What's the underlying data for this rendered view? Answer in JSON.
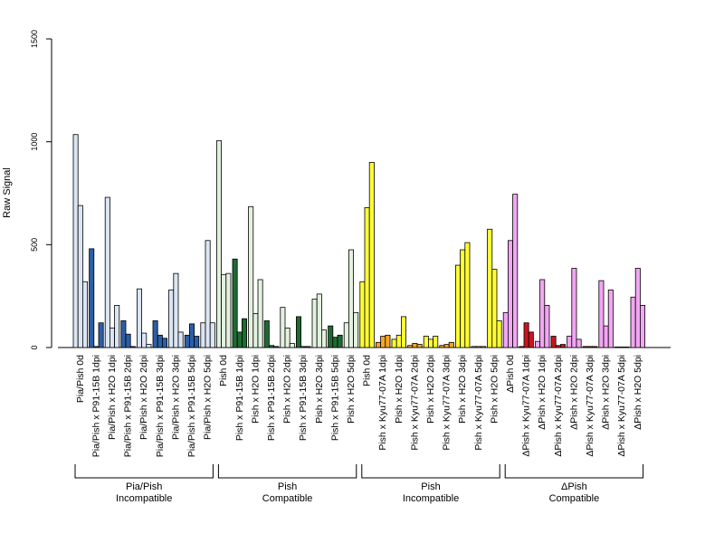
{
  "chart_data": {
    "type": "bar",
    "ylabel": "Raw Signal",
    "ylim": [
      0,
      1500
    ],
    "yticks": [
      0,
      500,
      1000,
      1500
    ],
    "grid": false,
    "legend": "none",
    "categories": [
      "Pia/Pish 0d",
      "Pia/Pish x P91-15B 1dpi",
      "Pia/Pish x H2O 1dpi",
      "Pia/Pish x P91-15B 2dpi",
      "Pia/Pish x H2O 2dpi",
      "Pia/Pish x P91-15B 3dpi",
      "Pia/Pish x H2O 3dpi",
      "Pia/Pish x P91-15B 5dpi",
      "Pia/Pish x H2O 5dpi",
      "Pish 0d",
      "Pish x P91-15B 1dpi",
      "Pish x H2O 1dpi",
      "Pish x P91-15B 2dpi",
      "Pish x H2O 2dpi",
      "Pish x P91-15B 3dpi",
      "Pish x H2O 3dpi",
      "Pish x P91-15B 5dpi",
      "Pish x H2O 5dpi",
      "Pish 0d",
      "Pish x Kyu77-07A 1dpi",
      "Pish x H2O 1dpi",
      "Pish x Kyu77-07A 2dpi",
      "Pish x H2O 2dpi",
      "Pish x Kyu77-07A 3dpi",
      "Pish x H2O 3dpi",
      "Pish x Kyu77-07A 5dpi",
      "Pish x H2O 5dpi",
      "ΔPish 0d",
      "ΔPish x Kyu77-07A 1dpi",
      "ΔPish x H2O 1dpi",
      "ΔPish x Kyu77-07A 2dpi",
      "ΔPish x H2O 2dpi",
      "ΔPish x Kyu77-07A 3dpi",
      "ΔPish x H2O 3dpi",
      "ΔPish x Kyu77-07A 5dpi",
      "ΔPish x H2O 5dpi"
    ],
    "values": [
      [
        1035,
        690,
        320
      ],
      [
        480,
        5,
        120
      ],
      [
        730,
        95,
        205
      ],
      [
        130,
        65,
        5
      ],
      [
        285,
        70,
        15
      ],
      [
        130,
        60,
        45
      ],
      [
        280,
        360,
        75
      ],
      [
        60,
        115,
        55
      ],
      [
        120,
        520,
        120
      ],
      [
        1005,
        355,
        360
      ],
      [
        430,
        75,
        140
      ],
      [
        685,
        165,
        330
      ],
      [
        130,
        10,
        5
      ],
      [
        195,
        95,
        20
      ],
      [
        150,
        5,
        5
      ],
      [
        235,
        260,
        85
      ],
      [
        105,
        50,
        60
      ],
      [
        120,
        475,
        170
      ],
      [
        320,
        680,
        900
      ],
      [
        25,
        55,
        60
      ],
      [
        40,
        60,
        150
      ],
      [
        10,
        20,
        15
      ],
      [
        55,
        40,
        55
      ],
      [
        10,
        15,
        25
      ],
      [
        400,
        475,
        510
      ],
      [
        5,
        5,
        5
      ],
      [
        575,
        380,
        130
      ],
      [
        170,
        520,
        745
      ],
      [
        5,
        120,
        75
      ],
      [
        30,
        330,
        205
      ],
      [
        55,
        10,
        15
      ],
      [
        55,
        385,
        40
      ],
      [
        5,
        5,
        5
      ],
      [
        325,
        105,
        280
      ],
      [
        2,
        2,
        2
      ],
      [
        245,
        385,
        205
      ]
    ],
    "bar_colors": [
      "#dbe5f3",
      "#2c5fa6",
      "#dbe5f3",
      "#2c5fa6",
      "#dbe5f3",
      "#2c5fa6",
      "#dbe5f3",
      "#2c5fa6",
      "#dbe5f3",
      "#e3f1df",
      "#1e6b32",
      "#e3f1df",
      "#1e6b32",
      "#e3f1df",
      "#1e6b32",
      "#e3f1df",
      "#1e6b32",
      "#e3f1df",
      "#ffff33",
      "#f5a623",
      "#ffff33",
      "#f5a623",
      "#ffff33",
      "#f5a623",
      "#ffff33",
      "#f5a623",
      "#ffff33",
      "#f2a6f2",
      "#cc1420",
      "#f2a6f2",
      "#cc1420",
      "#f2a6f2",
      "#cc1420",
      "#f2a6f2",
      "#cc1420",
      "#f2a6f2"
    ],
    "groups": [
      {
        "line1": "Pia/Pish",
        "line2": "Incompatible"
      },
      {
        "line1": "Pish",
        "line2": "Compatible"
      },
      {
        "line1": "Pish",
        "line2": "Incompatible"
      },
      {
        "line1": "ΔPish",
        "line2": "Compatible"
      }
    ]
  }
}
